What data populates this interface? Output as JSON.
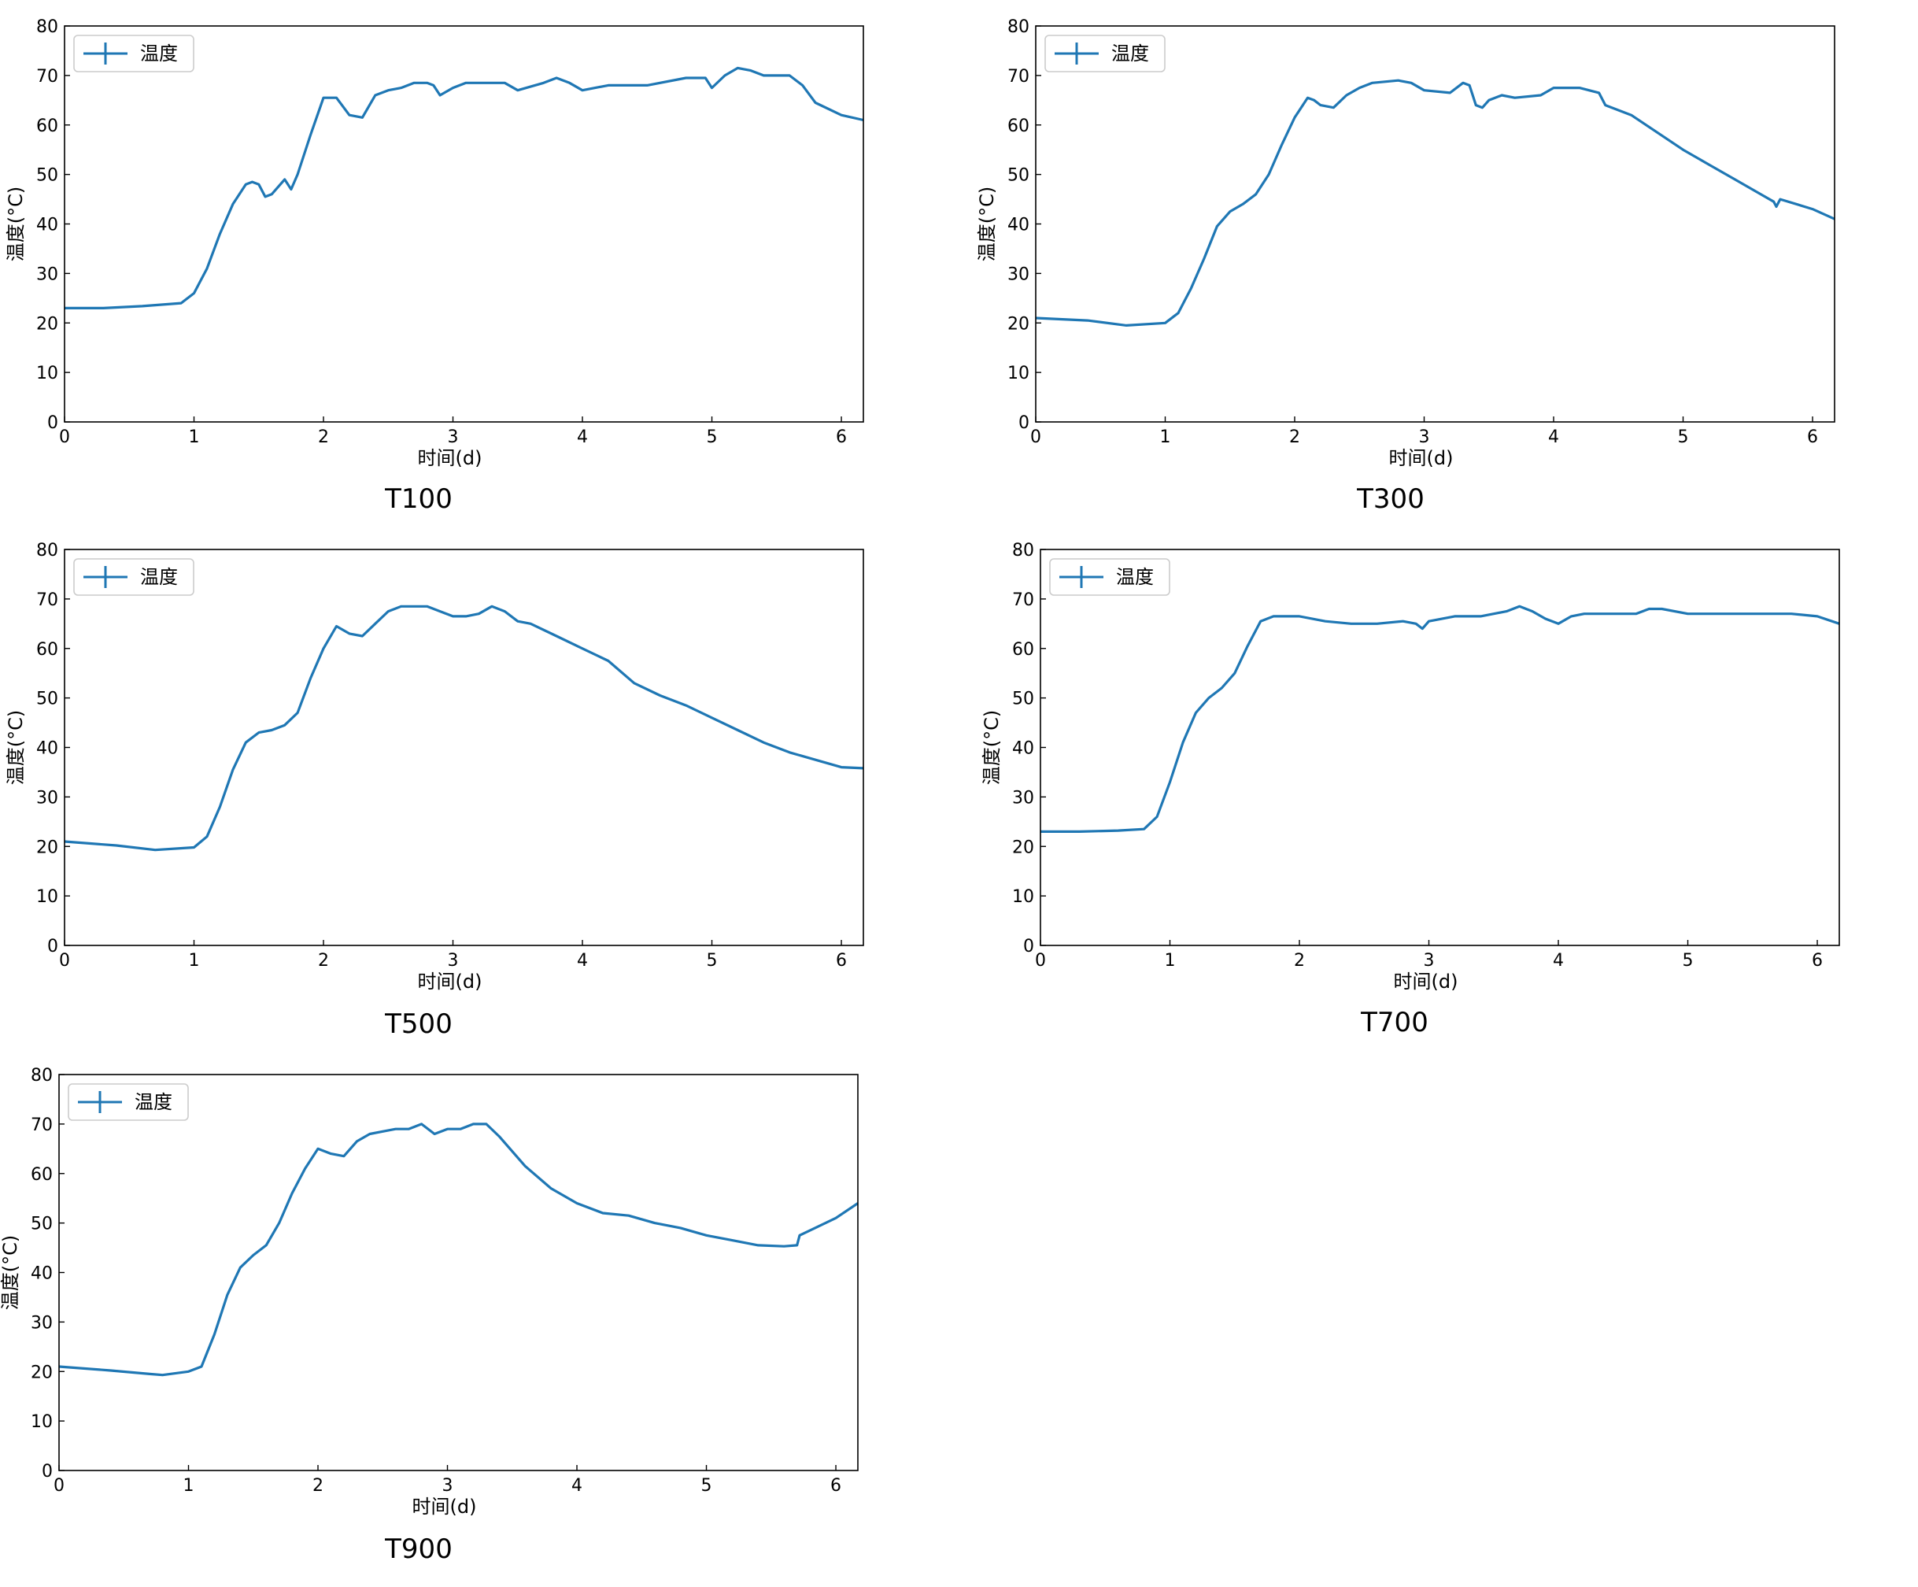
{
  "figure": {
    "charts": [
      {
        "id": "t100",
        "caption": "T100"
      },
      {
        "id": "t300",
        "caption": "T300"
      },
      {
        "id": "t500",
        "caption": "T500"
      },
      {
        "id": "t700",
        "caption": "T700"
      },
      {
        "id": "t900",
        "caption": "T900"
      }
    ]
  },
  "colors": {
    "series": "#1f77b4",
    "axis": "#000000",
    "legend_border": "#cccccc",
    "background": "#ffffff"
  },
  "chart_data": [
    {
      "type": "line",
      "title": "T100",
      "xlabel": "时间(d)",
      "ylabel": "温度(°C)",
      "xlim": [
        0,
        6.17
      ],
      "ylim": [
        0,
        80
      ],
      "xticks": [
        0,
        1,
        2,
        3,
        4,
        5,
        6
      ],
      "yticks": [
        0,
        10,
        20,
        30,
        40,
        50,
        60,
        70,
        80
      ],
      "grid": false,
      "legend": "top-left",
      "series": [
        {
          "name": "温度",
          "x": [
            0,
            0.3,
            0.6,
            0.9,
            1.0,
            1.1,
            1.2,
            1.3,
            1.4,
            1.45,
            1.5,
            1.55,
            1.6,
            1.7,
            1.75,
            1.8,
            1.9,
            2.0,
            2.1,
            2.2,
            2.3,
            2.4,
            2.5,
            2.6,
            2.7,
            2.8,
            2.85,
            2.9,
            3.0,
            3.1,
            3.2,
            3.4,
            3.5,
            3.7,
            3.8,
            3.9,
            4.0,
            4.2,
            4.5,
            4.8,
            4.9,
            4.95,
            5.0,
            5.1,
            5.2,
            5.3,
            5.4,
            5.6,
            5.7,
            5.8,
            6.0,
            6.17
          ],
          "values": [
            23,
            23,
            23.4,
            24,
            26,
            31,
            38,
            44,
            48,
            48.5,
            48,
            45.5,
            46,
            49,
            47,
            50,
            58,
            65.5,
            65.5,
            62,
            61.5,
            66,
            67,
            67.5,
            68.5,
            68.5,
            68,
            66,
            67.5,
            68.5,
            68.5,
            68.5,
            67,
            68.5,
            69.5,
            68.5,
            67,
            68,
            68,
            69.5,
            69.5,
            69.5,
            67.5,
            70,
            71.5,
            71,
            70,
            70,
            68,
            64.5,
            62,
            61
          ]
        }
      ]
    },
    {
      "type": "line",
      "title": "T300",
      "xlabel": "时间(d)",
      "ylabel": "温度(°C)",
      "xlim": [
        0,
        6.17
      ],
      "ylim": [
        0,
        80
      ],
      "xticks": [
        0,
        1,
        2,
        3,
        4,
        5,
        6
      ],
      "yticks": [
        0,
        10,
        20,
        30,
        40,
        50,
        60,
        70,
        80
      ],
      "grid": false,
      "legend": "top-left",
      "series": [
        {
          "name": "温度",
          "x": [
            0,
            0.4,
            0.7,
            1.0,
            1.1,
            1.2,
            1.3,
            1.4,
            1.5,
            1.6,
            1.7,
            1.8,
            1.9,
            2.0,
            2.1,
            2.15,
            2.2,
            2.3,
            2.4,
            2.5,
            2.6,
            2.8,
            2.9,
            3.0,
            3.2,
            3.3,
            3.35,
            3.4,
            3.45,
            3.5,
            3.6,
            3.7,
            3.9,
            4.0,
            4.2,
            4.35,
            4.4,
            4.6,
            4.8,
            5.0,
            5.2,
            5.4,
            5.6,
            5.7,
            5.72,
            5.75,
            6.0,
            6.17
          ],
          "values": [
            21,
            20.5,
            19.5,
            20,
            22,
            27,
            33,
            39.5,
            42.5,
            44,
            46,
            50,
            56,
            61.5,
            65.5,
            65,
            64,
            63.5,
            66,
            67.5,
            68.5,
            69,
            68.5,
            67,
            66.5,
            68.5,
            68,
            64,
            63.5,
            65,
            66,
            65.5,
            66,
            67.5,
            67.5,
            66.5,
            64,
            62,
            58.5,
            55,
            52,
            49,
            46,
            44.5,
            43.5,
            45,
            43,
            41
          ]
        }
      ]
    },
    {
      "type": "line",
      "title": "T500",
      "xlabel": "时间(d)",
      "ylabel": "温度(°C)",
      "xlim": [
        0,
        6.17
      ],
      "ylim": [
        0,
        80
      ],
      "xticks": [
        0,
        1,
        2,
        3,
        4,
        5,
        6
      ],
      "yticks": [
        0,
        10,
        20,
        30,
        40,
        50,
        60,
        70,
        80
      ],
      "grid": false,
      "legend": "top-left",
      "series": [
        {
          "name": "温度",
          "x": [
            0,
            0.4,
            0.7,
            1.0,
            1.1,
            1.2,
            1.3,
            1.4,
            1.5,
            1.6,
            1.7,
            1.8,
            1.9,
            2.0,
            2.1,
            2.2,
            2.3,
            2.4,
            2.5,
            2.6,
            2.8,
            2.9,
            3.0,
            3.1,
            3.2,
            3.3,
            3.4,
            3.5,
            3.6,
            3.8,
            4.0,
            4.2,
            4.4,
            4.6,
            4.8,
            5.0,
            5.2,
            5.4,
            5.6,
            5.8,
            6.0,
            6.17
          ],
          "values": [
            21,
            20.2,
            19.3,
            19.8,
            22,
            28,
            35.5,
            41,
            43,
            43.5,
            44.5,
            47,
            54,
            60,
            64.5,
            63,
            62.5,
            65,
            67.5,
            68.5,
            68.5,
            67.5,
            66.5,
            66.5,
            67,
            68.5,
            67.5,
            65.5,
            65,
            62.5,
            60,
            57.5,
            53,
            50.5,
            48.5,
            46,
            43.5,
            41,
            39,
            37.5,
            36,
            35.8
          ]
        }
      ]
    },
    {
      "type": "line",
      "title": "T700",
      "xlabel": "时间(d)",
      "ylabel": "温度(°C)",
      "xlim": [
        0,
        6.17
      ],
      "ylim": [
        0,
        80
      ],
      "xticks": [
        0,
        1,
        2,
        3,
        4,
        5,
        6
      ],
      "yticks": [
        0,
        10,
        20,
        30,
        40,
        50,
        60,
        70,
        80
      ],
      "grid": false,
      "legend": "top-left",
      "series": [
        {
          "name": "温度",
          "x": [
            0,
            0.3,
            0.6,
            0.8,
            0.9,
            1.0,
            1.1,
            1.2,
            1.3,
            1.4,
            1.5,
            1.6,
            1.7,
            1.8,
            1.9,
            2.0,
            2.2,
            2.4,
            2.6,
            2.8,
            2.9,
            2.95,
            3.0,
            3.2,
            3.4,
            3.6,
            3.7,
            3.8,
            3.9,
            4.0,
            4.1,
            4.2,
            4.4,
            4.6,
            4.7,
            4.8,
            5.0,
            5.2,
            5.4,
            5.6,
            5.8,
            6.0,
            6.17
          ],
          "values": [
            23,
            23,
            23.2,
            23.5,
            26,
            33,
            41,
            47,
            50,
            52,
            55,
            60.5,
            65.5,
            66.5,
            66.5,
            66.5,
            65.5,
            65,
            65,
            65.5,
            65,
            64,
            65.5,
            66.5,
            66.5,
            67.5,
            68.5,
            67.5,
            66,
            65,
            66.5,
            67,
            67,
            67,
            68,
            68,
            67,
            67,
            67,
            67,
            67,
            66.5,
            65
          ]
        }
      ]
    },
    {
      "type": "line",
      "title": "T900",
      "xlabel": "时间(d)",
      "ylabel": "温度(°C)",
      "xlim": [
        0,
        6.17
      ],
      "ylim": [
        0,
        80
      ],
      "xticks": [
        0,
        1,
        2,
        3,
        4,
        5,
        6
      ],
      "yticks": [
        0,
        10,
        20,
        30,
        40,
        50,
        60,
        70,
        80
      ],
      "grid": false,
      "legend": "top-left",
      "series": [
        {
          "name": "温度",
          "x": [
            0,
            0.4,
            0.7,
            0.8,
            1.0,
            1.1,
            1.2,
            1.3,
            1.4,
            1.5,
            1.6,
            1.7,
            1.8,
            1.9,
            2.0,
            2.1,
            2.2,
            2.3,
            2.4,
            2.5,
            2.6,
            2.7,
            2.8,
            2.9,
            3.0,
            3.1,
            3.2,
            3.3,
            3.4,
            3.6,
            3.8,
            4.0,
            4.2,
            4.4,
            4.6,
            4.8,
            5.0,
            5.2,
            5.4,
            5.6,
            5.7,
            5.72,
            5.8,
            6.0,
            6.17
          ],
          "values": [
            21,
            20.2,
            19.5,
            19.3,
            20,
            21,
            27.5,
            35.5,
            41,
            43.5,
            45.5,
            50,
            56,
            61,
            65,
            64,
            63.5,
            66.5,
            68,
            68.5,
            69,
            69,
            70,
            68,
            69,
            69,
            70,
            70,
            67.5,
            61.5,
            57,
            54,
            52,
            51.5,
            50,
            49,
            47.5,
            46.5,
            45.5,
            45.3,
            45.5,
            47.5,
            48.5,
            51,
            54
          ]
        }
      ]
    }
  ]
}
